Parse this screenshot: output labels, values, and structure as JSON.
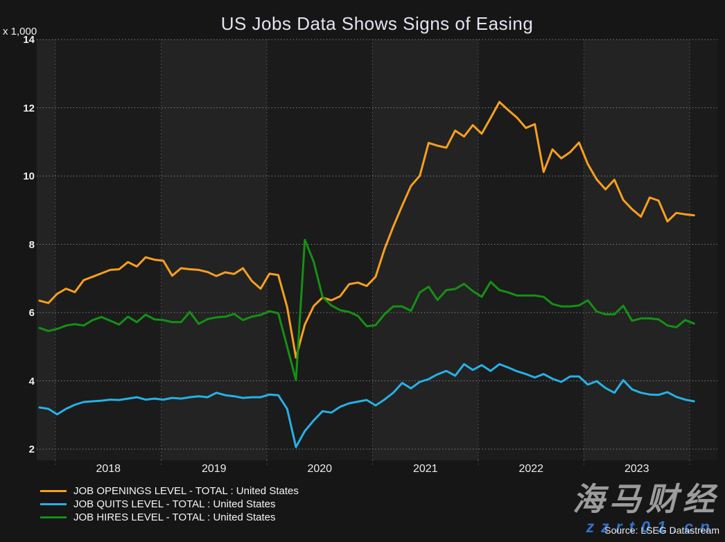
{
  "chart_data": {
    "type": "line",
    "title": "US Jobs Data Shows Signs of Easing",
    "y_unit": "x 1,000",
    "source": "Source: LSEG Datastream",
    "x_start": "2017-11",
    "x_end": "2024-01",
    "freq": "monthly",
    "grid": "dotted",
    "legend_position": "bottom-left",
    "ylim": [
      1.67,
      14
    ],
    "y_ticks": [
      14,
      12,
      10,
      8,
      6,
      4,
      2
    ],
    "year_labels": [
      "2018",
      "2019",
      "2020",
      "2021",
      "2022",
      "2023"
    ],
    "series": [
      {
        "name": "JOB OPENINGS LEVEL - TOTAL : United States",
        "color": "#f9a01f",
        "values": [
          6.35,
          6.28,
          6.55,
          6.7,
          6.6,
          6.95,
          7.05,
          7.15,
          7.25,
          7.27,
          7.48,
          7.35,
          7.62,
          7.55,
          7.52,
          7.08,
          7.3,
          7.27,
          7.25,
          7.19,
          7.07,
          7.18,
          7.13,
          7.3,
          6.93,
          6.7,
          7.14,
          7.1,
          6.16,
          4.68,
          5.65,
          6.19,
          6.44,
          6.36,
          6.48,
          6.83,
          6.88,
          6.78,
          7.05,
          7.85,
          8.52,
          9.13,
          9.71,
          10.01,
          10.97,
          10.89,
          10.83,
          11.33,
          11.16,
          11.49,
          11.24,
          11.7,
          12.17,
          11.93,
          11.71,
          11.41,
          11.52,
          10.12,
          10.78,
          10.52,
          10.7,
          10.98,
          10.35,
          9.9,
          9.61,
          9.89,
          9.3,
          9.03,
          8.81,
          9.37,
          9.28,
          8.67,
          8.92,
          8.88,
          8.85
        ]
      },
      {
        "name": "JOB QUITS LEVEL - TOTAL : United States",
        "color": "#25b2e6",
        "values": [
          3.22,
          3.18,
          3.02,
          3.18,
          3.3,
          3.38,
          3.4,
          3.42,
          3.45,
          3.44,
          3.48,
          3.52,
          3.45,
          3.48,
          3.45,
          3.5,
          3.48,
          3.52,
          3.55,
          3.52,
          3.65,
          3.58,
          3.55,
          3.5,
          3.52,
          3.52,
          3.6,
          3.58,
          3.18,
          2.06,
          2.53,
          2.84,
          3.11,
          3.07,
          3.24,
          3.34,
          3.39,
          3.44,
          3.28,
          3.45,
          3.65,
          3.94,
          3.78,
          3.97,
          4.05,
          4.19,
          4.29,
          4.15,
          4.49,
          4.32,
          4.46,
          4.29,
          4.49,
          4.39,
          4.28,
          4.2,
          4.1,
          4.2,
          4.06,
          3.97,
          4.13,
          4.13,
          3.89,
          3.99,
          3.79,
          3.65,
          4.02,
          3.75,
          3.65,
          3.6,
          3.59,
          3.67,
          3.53,
          3.45,
          3.4
        ]
      },
      {
        "name": "JOB HIRES LEVEL - TOTAL : United States",
        "color": "#149114",
        "values": [
          5.55,
          5.46,
          5.52,
          5.62,
          5.66,
          5.62,
          5.78,
          5.87,
          5.76,
          5.65,
          5.88,
          5.72,
          5.94,
          5.8,
          5.78,
          5.72,
          5.72,
          6.02,
          5.67,
          5.81,
          5.86,
          5.88,
          5.96,
          5.78,
          5.88,
          5.93,
          6.04,
          5.98,
          5.0,
          4.02,
          8.13,
          7.49,
          6.46,
          6.21,
          6.07,
          6.02,
          5.9,
          5.6,
          5.63,
          5.95,
          6.18,
          6.18,
          6.05,
          6.59,
          6.76,
          6.37,
          6.66,
          6.69,
          6.84,
          6.63,
          6.46,
          6.9,
          6.66,
          6.59,
          6.5,
          6.5,
          6.5,
          6.46,
          6.25,
          6.18,
          6.18,
          6.21,
          6.36,
          6.03,
          5.95,
          5.95,
          6.2,
          5.76,
          5.83,
          5.83,
          5.8,
          5.62,
          5.57,
          5.78,
          5.68
        ]
      }
    ]
  },
  "watermark": {
    "text": "海马财经",
    "url": "zzrt01.cn"
  },
  "theme": {
    "background": "#161616",
    "band_dark": "#1b1b1b",
    "band_light": "#232323",
    "grid_h": "#9a9a9a",
    "grid_v": "#7d7d7d",
    "text": "#f0f0f0",
    "watermark_gray": "#9c9c9c",
    "watermark_blue": "#3472c8"
  }
}
